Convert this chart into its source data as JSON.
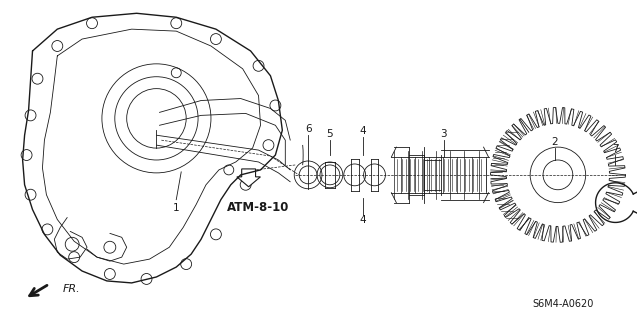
{
  "background_color": "#ffffff",
  "line_color": "#1a1a1a",
  "fig_width": 6.4,
  "fig_height": 3.19,
  "dpi": 100,
  "atm_label": "ATM-8-10",
  "fr_label": "FR.",
  "code_label": "S6M4-A0620"
}
